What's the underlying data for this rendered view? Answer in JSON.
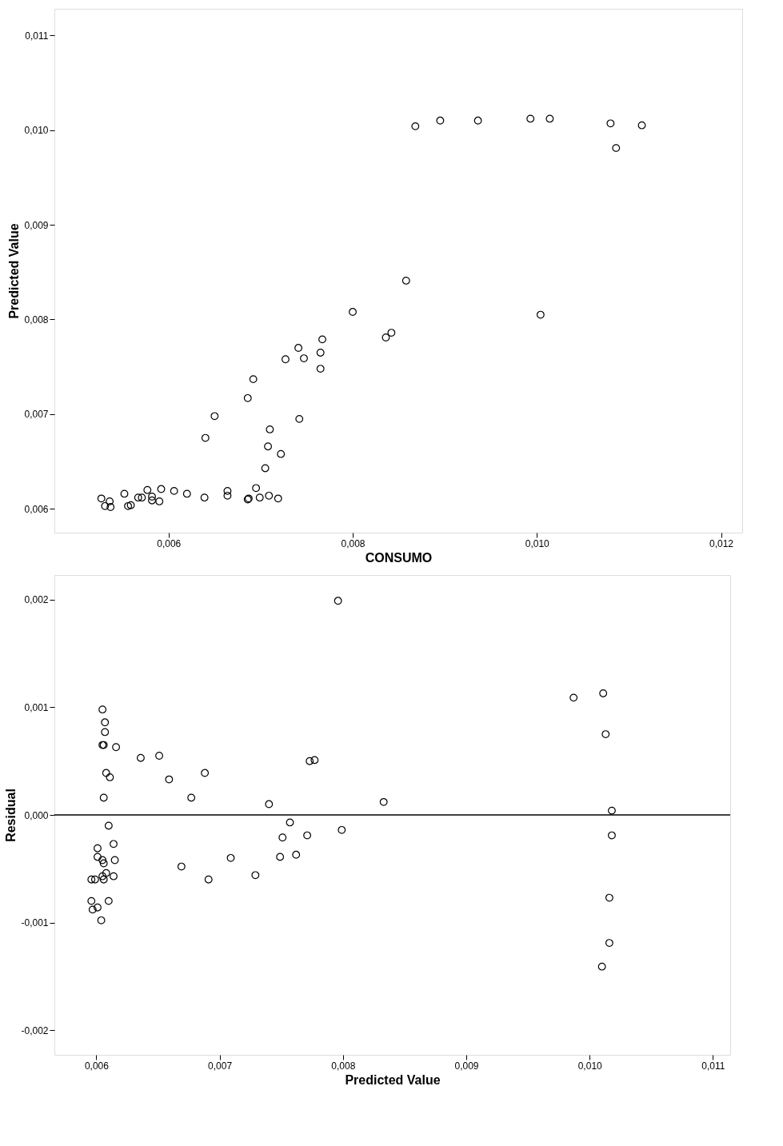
{
  "chart_data": [
    {
      "type": "scatter",
      "xlabel": "CONSUMO",
      "ylabel": "Predicted Value",
      "marker": "circle",
      "grid": false,
      "xlim": [
        0.00476,
        0.01223
      ],
      "ylim": [
        0.00575,
        0.01128
      ],
      "xticks": [
        {
          "value": 0.006,
          "label": "0,006"
        },
        {
          "value": 0.008,
          "label": "0,008"
        },
        {
          "value": 0.01,
          "label": "0,010"
        },
        {
          "value": 0.012,
          "label": "0,012"
        }
      ],
      "yticks": [
        {
          "value": 0.006,
          "label": "0,006"
        },
        {
          "value": 0.007,
          "label": "0,007"
        },
        {
          "value": 0.008,
          "label": "0,008"
        },
        {
          "value": 0.009,
          "label": "0,009"
        },
        {
          "value": 0.01,
          "label": "0,010"
        },
        {
          "value": 0.011,
          "label": "0,011"
        }
      ],
      "series": [
        {
          "color": "#000000",
          "x": [
            0.00868,
            0.00895,
            0.00936,
            0.00993,
            0.01014,
            0.0108,
            0.01114,
            0.01086,
            0.00858,
            0.008,
            0.01004,
            0.00836,
            0.00842,
            0.00767,
            0.00741,
            0.00765,
            0.00747,
            0.00727,
            0.00765,
            0.00692,
            0.00686,
            0.0065,
            0.0064,
            0.00742,
            0.0071,
            0.00708,
            0.00722,
            0.00705,
            0.00527,
            0.00536,
            0.00531,
            0.00537,
            0.00552,
            0.00556,
            0.00559,
            0.00567,
            0.00571,
            0.00577,
            0.00582,
            0.00582,
            0.0059,
            0.00592,
            0.00606,
            0.0062,
            0.00639,
            0.00664,
            0.00664,
            0.00687,
            0.00686,
            0.00695,
            0.00699,
            0.00709,
            0.00719
          ],
          "values": [
            0.01004,
            0.0101,
            0.0101,
            0.01012,
            0.01012,
            0.01007,
            0.01005,
            0.00981,
            0.00841,
            0.00808,
            0.00805,
            0.00781,
            0.00786,
            0.00779,
            0.0077,
            0.00765,
            0.00759,
            0.00758,
            0.00748,
            0.00737,
            0.00717,
            0.00698,
            0.00675,
            0.00695,
            0.00684,
            0.00666,
            0.00658,
            0.00643,
            0.00611,
            0.00608,
            0.00603,
            0.00602,
            0.00616,
            0.00603,
            0.00604,
            0.00612,
            0.00612,
            0.0062,
            0.00613,
            0.00609,
            0.00608,
            0.00621,
            0.00619,
            0.00616,
            0.00612,
            0.00619,
            0.00614,
            0.00611,
            0.0061,
            0.00622,
            0.00612,
            0.00614,
            0.00611
          ]
        }
      ]
    },
    {
      "type": "scatter",
      "xlabel": "Predicted Value",
      "ylabel": "Residual",
      "marker": "circle",
      "grid": false,
      "xlim": [
        0.00566,
        0.01114
      ],
      "ylim": [
        -0.00223,
        0.00223
      ],
      "xticks": [
        {
          "value": 0.006,
          "label": "0,006"
        },
        {
          "value": 0.007,
          "label": "0,007"
        },
        {
          "value": 0.008,
          "label": "0,008"
        },
        {
          "value": 0.009,
          "label": "0,009"
        },
        {
          "value": 0.01,
          "label": "0,010"
        },
        {
          "value": 0.011,
          "label": "0,011"
        }
      ],
      "yticks": [
        {
          "value": -0.002,
          "label": "-0,002"
        },
        {
          "value": -0.001,
          "label": "-0,001"
        },
        {
          "value": 0,
          "label": "0,000"
        },
        {
          "value": 0.001,
          "label": "0,001"
        },
        {
          "value": 0.002,
          "label": "0,002"
        }
      ],
      "ref_lines": [
        {
          "axis": "y",
          "value": 0,
          "color": "#000000"
        }
      ],
      "series": [
        {
          "color": "#000000",
          "x": [
            0.00796,
            0.00987,
            0.01011,
            0.01013,
            0.01018,
            0.01018,
            0.01016,
            0.01016,
            0.0101,
            0.00833,
            0.00773,
            0.00777,
            0.0074,
            0.00757,
            0.00751,
            0.00771,
            0.00799,
            0.00749,
            0.00762,
            0.00709,
            0.00729,
            0.00691,
            0.00669,
            0.00636,
            0.00651,
            0.00659,
            0.00688,
            0.00677,
            0.00605,
            0.00607,
            0.00607,
            0.00605,
            0.00606,
            0.00616,
            0.00608,
            0.00611,
            0.00606,
            0.0061,
            0.00614,
            0.00601,
            0.00601,
            0.00605,
            0.00606,
            0.00615,
            0.00608,
            0.00605,
            0.00606,
            0.00614,
            0.00596,
            0.00599,
            0.00596,
            0.0061,
            0.00597,
            0.00601,
            0.00604
          ],
          "values": [
            0.00199,
            0.00109,
            0.00113,
            0.00075,
            4e-05,
            -0.00019,
            -0.00077,
            -0.00119,
            -0.00141,
            0.00012,
            0.0005,
            0.00051,
            0.0001,
            -7e-05,
            -0.00021,
            -0.00019,
            -0.00014,
            -0.00039,
            -0.00037,
            -0.0004,
            -0.00056,
            -0.0006,
            -0.00048,
            0.00053,
            0.00055,
            0.00033,
            0.00039,
            0.00016,
            0.00098,
            0.00086,
            0.00077,
            0.00065,
            0.00065,
            0.00063,
            0.00039,
            0.00035,
            0.00016,
            -0.0001,
            -0.00027,
            -0.00031,
            -0.00039,
            -0.00042,
            -0.00045,
            -0.00042,
            -0.00054,
            -0.00057,
            -0.0006,
            -0.00057,
            -0.0006,
            -0.0006,
            -0.0008,
            -0.0008,
            -0.00088,
            -0.00086,
            -0.00098
          ]
        }
      ]
    }
  ]
}
